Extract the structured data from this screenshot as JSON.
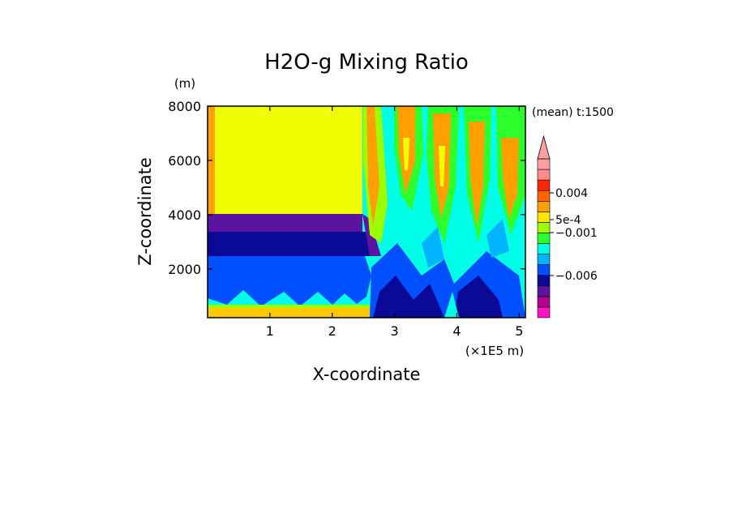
{
  "chart_data": {
    "type": "heatmap",
    "title": "H2O-g Mixing Ratio",
    "xlabel": "X-coordinate",
    "ylabel": "Z-coordinate",
    "y_unit": "(m)",
    "x_unit": "(×1E5 m)",
    "annotation": "(mean) t:1500",
    "xlim": [
      0,
      5.1
    ],
    "ylim": [
      200,
      8000
    ],
    "x_ticks": [
      1,
      2,
      3,
      4,
      5
    ],
    "y_ticks": [
      2000,
      4000,
      6000,
      8000
    ],
    "colorbar": {
      "colors": [
        "#ff14c8",
        "#b4008c",
        "#5a14a0",
        "#0a0a96",
        "#0050ff",
        "#00b4ff",
        "#00ffe6",
        "#2dff2d",
        "#9bff00",
        "#ffe600",
        "#ffa000",
        "#ff6400",
        "#ff2800",
        "#ff8c8c",
        "#ffa0a0"
      ],
      "labels": [
        "0.004",
        "5e-4",
        "−0.001",
        "−0.006"
      ],
      "extend": "max"
    },
    "regions": [
      {
        "name": "upper-left plateau",
        "color": "#f0ff00",
        "x": [
          0.0,
          2.5
        ],
        "z": [
          4000,
          8000
        ]
      },
      {
        "name": "purple band",
        "color": "#5a14a0",
        "x": [
          0.0,
          2.5
        ],
        "z": [
          3500,
          4000
        ]
      },
      {
        "name": "blue layer",
        "color": "#0050ff",
        "x": [
          0.0,
          2.5
        ],
        "z": [
          1000,
          3500
        ]
      },
      {
        "name": "surface band",
        "color": "#ffc800",
        "x": [
          0.0,
          2.6
        ],
        "z": [
          200,
          400
        ]
      },
      {
        "name": "turbulent right",
        "color": "#00ffe6",
        "x": [
          2.5,
          5.1
        ],
        "z": [
          200,
          8000
        ]
      }
    ]
  }
}
